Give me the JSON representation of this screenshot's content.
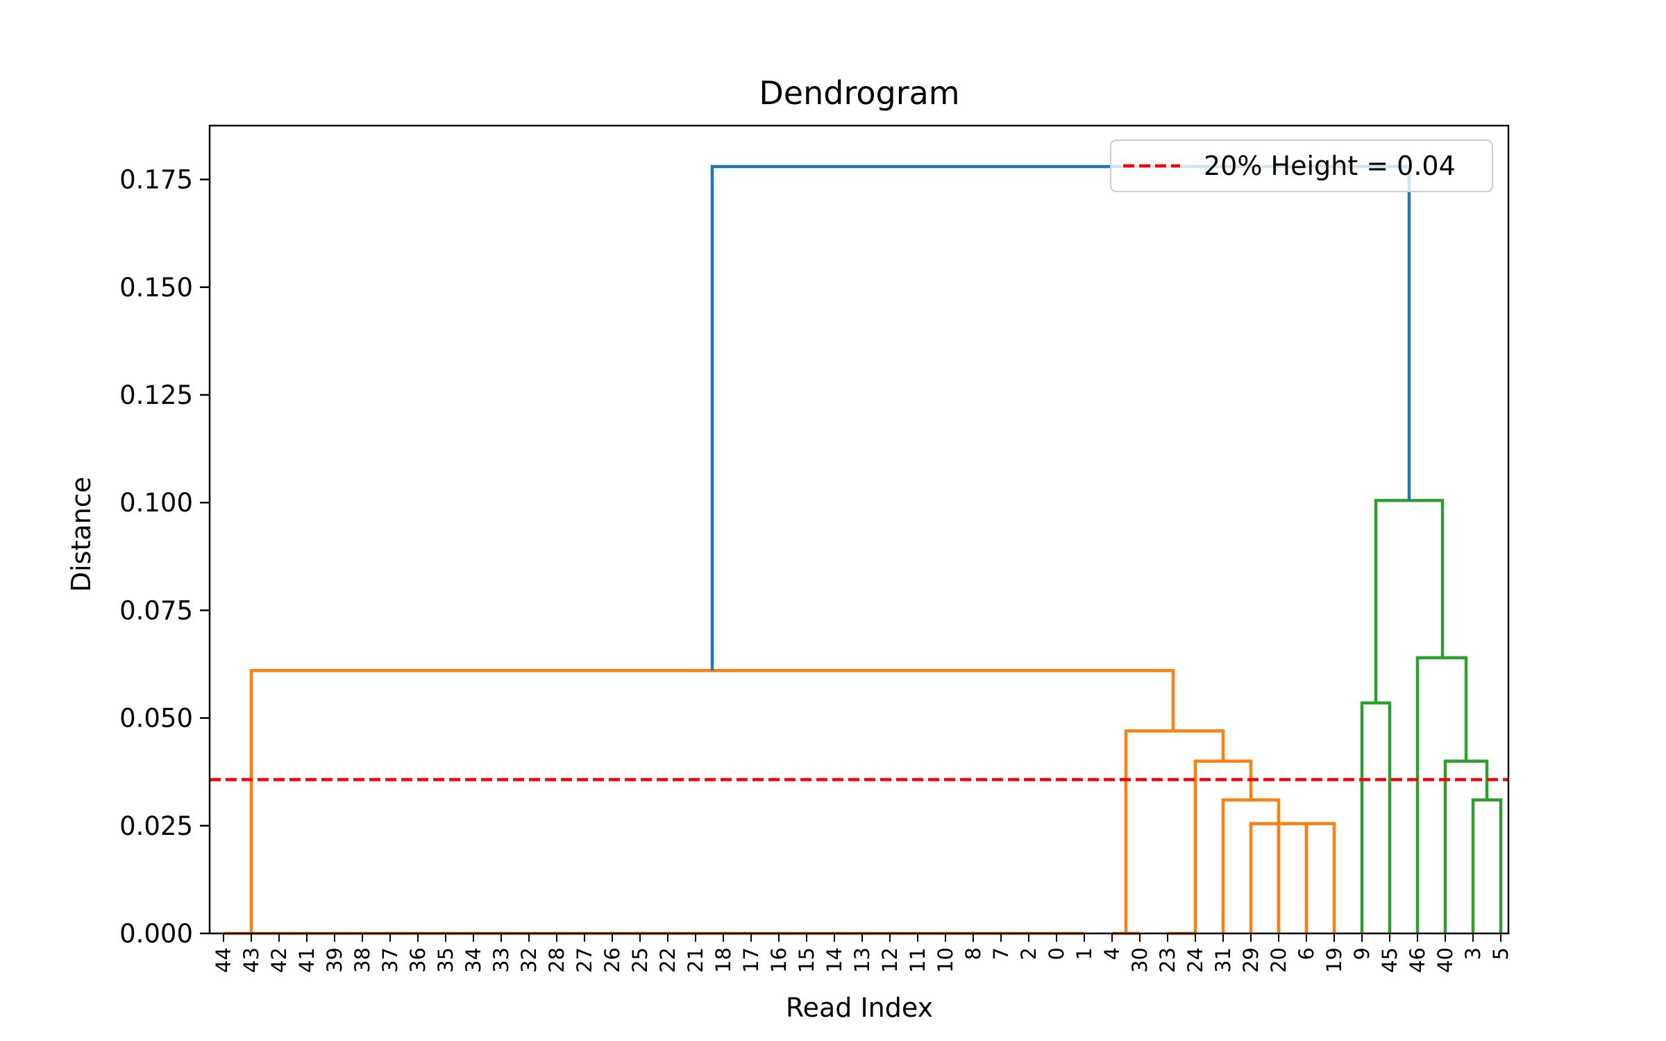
{
  "chart_data": {
    "type": "dendrogram",
    "title": "Dendrogram",
    "xlabel": "Read Index",
    "ylabel": "Distance",
    "ylim": [
      0,
      0.1875
    ],
    "yticks": [
      "0.000",
      "0.025",
      "0.050",
      "0.075",
      "0.100",
      "0.125",
      "0.150",
      "0.175"
    ],
    "ytick_values": [
      0,
      0.025,
      0.05,
      0.075,
      0.1,
      0.125,
      0.15,
      0.175
    ],
    "leaves": [
      "44",
      "43",
      "42",
      "41",
      "39",
      "38",
      "37",
      "36",
      "35",
      "34",
      "33",
      "32",
      "28",
      "27",
      "26",
      "25",
      "22",
      "21",
      "18",
      "17",
      "16",
      "15",
      "14",
      "13",
      "12",
      "11",
      "10",
      "8",
      "7",
      "2",
      "0",
      "1",
      "4",
      "30",
      "23",
      "24",
      "31",
      "29",
      "20",
      "6",
      "19",
      "9",
      "45",
      "46",
      "40",
      "3",
      "5"
    ],
    "grid": false,
    "legend": {
      "position": "top-right",
      "label": "20% Height = 0.04"
    },
    "threshold": {
      "value": 0.0357,
      "color": "#ff0000",
      "style": "dashed"
    },
    "colors": {
      "cluster_1": "#ff7f0e",
      "cluster_2": "#2ca02c",
      "above_threshold": "#1f77b4"
    },
    "links": [
      {
        "x": [
          0,
          0,
          1,
          1
        ],
        "y": [
          0,
          0,
          0,
          0
        ],
        "color": "#ff7f0e"
      },
      {
        "x": [
          1,
          1,
          31,
          31
        ],
        "y": [
          0,
          0,
          0,
          0
        ],
        "color": "#ff7f0e"
      },
      {
        "x": [
          32,
          32,
          33,
          33
        ],
        "y": [
          0,
          0,
          0,
          0
        ],
        "color": "#ff7f0e"
      },
      {
        "x": [
          34,
          34,
          35,
          35
        ],
        "y": [
          0,
          0,
          0,
          0
        ],
        "color": "#ff7f0e"
      },
      {
        "x": [
          38,
          38,
          39,
          39
        ],
        "y": [
          0,
          0.0255,
          0.0255,
          0
        ],
        "color": "#ff7f0e"
      },
      {
        "x": [
          39,
          39,
          40,
          40
        ],
        "y": [
          0,
          0.0255,
          0.0255,
          0
        ],
        "color": "#ff7f0e"
      },
      {
        "x": [
          37,
          37,
          38,
          38
        ],
        "y": [
          0,
          0.0255,
          0.0255,
          0
        ],
        "color": "#ff7f0e"
      },
      {
        "x": [
          36,
          36,
          38,
          38
        ],
        "y": [
          0,
          0.031,
          0.031,
          0.0255
        ],
        "color": "#ff7f0e"
      },
      {
        "x": [
          35,
          35,
          37,
          37
        ],
        "y": [
          0,
          0.04,
          0.04,
          0.031
        ],
        "color": "#ff7f0e"
      },
      {
        "x": [
          32.5,
          32.5,
          36,
          36
        ],
        "y": [
          0,
          0.047,
          0.047,
          0.04
        ],
        "color": "#ff7f0e"
      },
      {
        "x": [
          1,
          1,
          34.2,
          34.2
        ],
        "y": [
          0,
          0.061,
          0.061,
          0.047
        ],
        "color": "#ff7f0e"
      },
      {
        "x": [
          41,
          41,
          42,
          42
        ],
        "y": [
          0,
          0.0535,
          0.0535,
          0
        ],
        "color": "#2ca02c"
      },
      {
        "x": [
          45,
          45,
          46,
          46
        ],
        "y": [
          0,
          0.031,
          0.031,
          0
        ],
        "color": "#2ca02c"
      },
      {
        "x": [
          44,
          44,
          45.5,
          45.5
        ],
        "y": [
          0,
          0.04,
          0.04,
          0.031
        ],
        "color": "#2ca02c"
      },
      {
        "x": [
          43,
          43,
          44.75,
          44.75
        ],
        "y": [
          0,
          0.064,
          0.064,
          0.04
        ],
        "color": "#2ca02c"
      },
      {
        "x": [
          41.5,
          41.5,
          43.9,
          43.9
        ],
        "y": [
          0.0535,
          0.1005,
          0.1005,
          0.064
        ],
        "color": "#2ca02c"
      },
      {
        "x": [
          17.6,
          17.6,
          42.7,
          42.7
        ],
        "y": [
          0.061,
          0.178,
          0.178,
          0.1005
        ],
        "color": "#1f77b4"
      }
    ]
  }
}
